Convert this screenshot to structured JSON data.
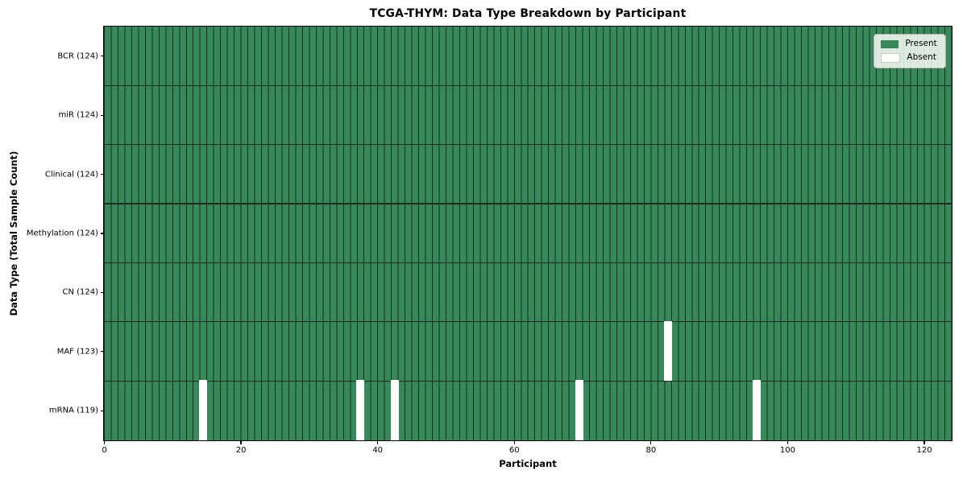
{
  "chart_data": {
    "type": "heatmap",
    "title": "TCGA-THYM: Data Type Breakdown by Participant",
    "xlabel": "Participant",
    "ylabel": "Data Type (Total Sample Count)",
    "x_range": [
      0,
      124
    ],
    "n_participants": 124,
    "x_ticks": [
      0,
      20,
      40,
      60,
      80,
      100,
      120
    ],
    "grid": true,
    "rows_top_to_bottom": [
      {
        "label": "BCR (124)",
        "data_type": "BCR",
        "total_samples": 124,
        "absent_participant_indices": []
      },
      {
        "label": "miR (124)",
        "data_type": "miR",
        "total_samples": 124,
        "absent_participant_indices": []
      },
      {
        "label": "Clinical (124)",
        "data_type": "Clinical",
        "total_samples": 124,
        "absent_participant_indices": []
      },
      {
        "label": "Methylation (124)",
        "data_type": "Methylation",
        "total_samples": 124,
        "absent_participant_indices": []
      },
      {
        "label": "CN (124)",
        "data_type": "CN",
        "total_samples": 124,
        "absent_participant_indices": []
      },
      {
        "label": "MAF (123)",
        "data_type": "MAF",
        "total_samples": 123,
        "absent_participant_indices": [
          82
        ]
      },
      {
        "label": "mRNA (119)",
        "data_type": "mRNA",
        "total_samples": 119,
        "absent_participant_indices": [
          14,
          37,
          42,
          69,
          95
        ]
      }
    ],
    "legend": {
      "position": "upper right",
      "entries": [
        {
          "label": "Present",
          "color": "#38895a"
        },
        {
          "label": "Absent",
          "color": "#ffffff"
        }
      ]
    },
    "colors": {
      "present": "#38895a",
      "absent": "#ffffff",
      "cell_edge": "#1d2d22",
      "spine": "#000000",
      "legend_border": "#b0b4ae"
    }
  }
}
